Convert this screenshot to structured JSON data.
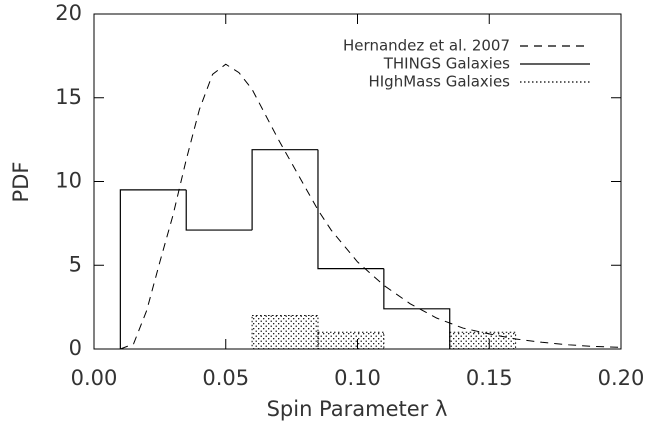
{
  "chart_data": {
    "type": "histogram",
    "xlabel": "Spin Parameter λ",
    "ylabel": "PDF",
    "xlim": [
      0,
      0.2
    ],
    "ylim": [
      0,
      20
    ],
    "xticks": [
      {
        "value": 0,
        "label": "0.00"
      },
      {
        "value": 0.05,
        "label": "0.05"
      },
      {
        "value": 0.1,
        "label": "0.10"
      },
      {
        "value": 0.15,
        "label": "0.15"
      },
      {
        "value": 0.2,
        "label": "0.20"
      }
    ],
    "yticks": [
      0,
      5,
      10,
      15,
      20
    ],
    "legend": "top-right",
    "series": [
      {
        "name": "Hernandez et al. 2007",
        "kind": "line",
        "style": "dashed",
        "color": "#000000",
        "x": [
          0.01,
          0.015,
          0.02,
          0.025,
          0.03,
          0.035,
          0.04,
          0.045,
          0.05,
          0.055,
          0.06,
          0.065,
          0.07,
          0.075,
          0.08,
          0.085,
          0.09,
          0.1,
          0.11,
          0.12,
          0.13,
          0.14,
          0.15,
          0.16,
          0.17,
          0.18,
          0.19,
          0.2
        ],
        "values": [
          0,
          0.3,
          2.3,
          5.2,
          8.0,
          11.3,
          14.3,
          16.4,
          17.0,
          16.5,
          15.5,
          14.0,
          12.5,
          11.1,
          9.7,
          8.3,
          7.1,
          5.2,
          3.8,
          2.7,
          1.85,
          1.25,
          0.9,
          0.6,
          0.4,
          0.25,
          0.15,
          0.1
        ]
      },
      {
        "name": "THINGS Galaxies",
        "kind": "step",
        "style": "solid",
        "color": "#000000",
        "bins": [
          0.01,
          0.035,
          0.06,
          0.085,
          0.11,
          0.135
        ],
        "values": [
          9.5,
          7.1,
          11.9,
          4.8,
          2.4
        ]
      },
      {
        "name": "HIghMass Galaxies",
        "kind": "hatched",
        "style": "dotted",
        "color": "#000000",
        "bins": [
          0.06,
          0.085,
          0.11,
          0.135,
          0.16
        ],
        "values": [
          2,
          1,
          0,
          1
        ]
      }
    ]
  }
}
